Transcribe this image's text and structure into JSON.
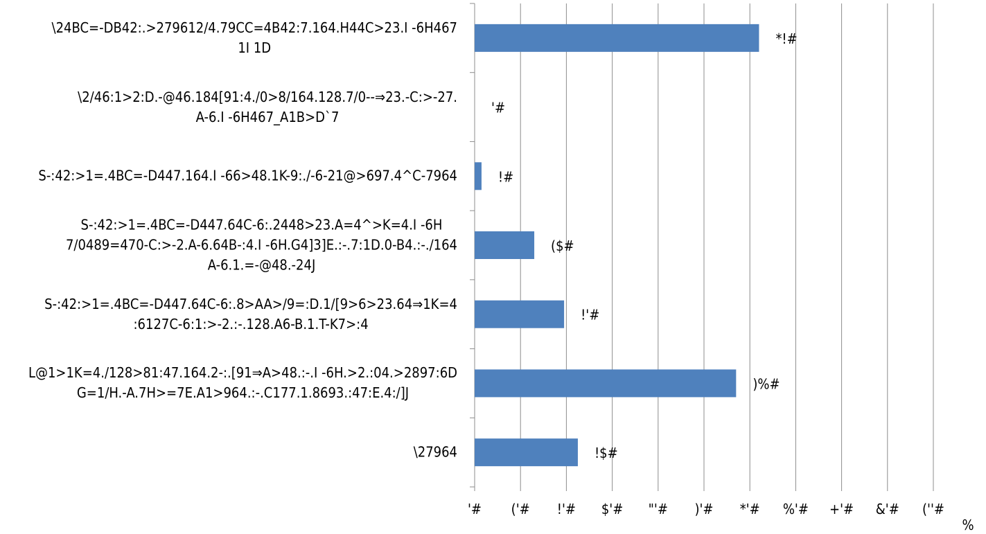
{
  "chart_data": {
    "type": "bar",
    "orientation": "horizontal",
    "categories": [
      [
        "\\24BC=-DB42:.>279612/4.79CC=4B42:7.164.H44C>23.I -6H467",
        "1I 1D"
      ],
      [
        "\\2/46:1>2:D.-@46.184[91:4./0>8/164.128.7/0--⇒23.-C:>-27.",
        "A-6.I -6H467_A1B>D`7"
      ],
      [
        "S-:42:>1=.4BC=-D447.164.I -66>48.1K-9:./-6-21@>697.4^C-7964"
      ],
      [
        "S-:42:>1=.4BC=-D447.64C-6:.2448>23.A=4^>K=4.I -6H",
        "7/0489=470-C:>-2.A-6.64B-:4.I -6H.G4]3]E.:-.7:1D.0-B4.:-./164",
        "A-6.1.=-@48.-24J"
      ],
      [
        "S-:42:>1=.4BC=-D447.64C-6:.8>AA>/9=:D.1/[9>6>23.64⇒1K=4",
        ":6127C-6:1:>-2.:-.128.A6-B.1.T-K7>:4"
      ],
      [
        "L@1>1K=4./128>81:47.164.2-:.[91⇒A>48.:-.I -6H.>2.:04.>2897:6D",
        "G=1/H.-A.7H>=7E.A1>964.:-.C177.1.8693.:47:E.4:/]J"
      ],
      [
        "\\27964"
      ]
    ],
    "values": [
      62,
      0,
      1.5,
      13,
      19.5,
      57,
      22.5
    ],
    "data_labels": [
      "*!#",
      "'#",
      "!#",
      "($#",
      "!'#",
      ")%#",
      "!$#"
    ],
    "xlim": [
      0,
      100
    ],
    "x_ticks": [
      0,
      10,
      20,
      30,
      40,
      50,
      60,
      70,
      80,
      90,
      100
    ],
    "x_tick_labels": [
      "'#",
      "('#",
      "!'#",
      "$'#",
      "\"'#",
      ")'#",
      "*'#",
      "%'#",
      "+'#",
      "&'#",
      "(''#"
    ],
    "x_unit_label": "%",
    "grid": true,
    "bar_color": "#4f81bd",
    "grid_color": "#8c8c8c"
  }
}
